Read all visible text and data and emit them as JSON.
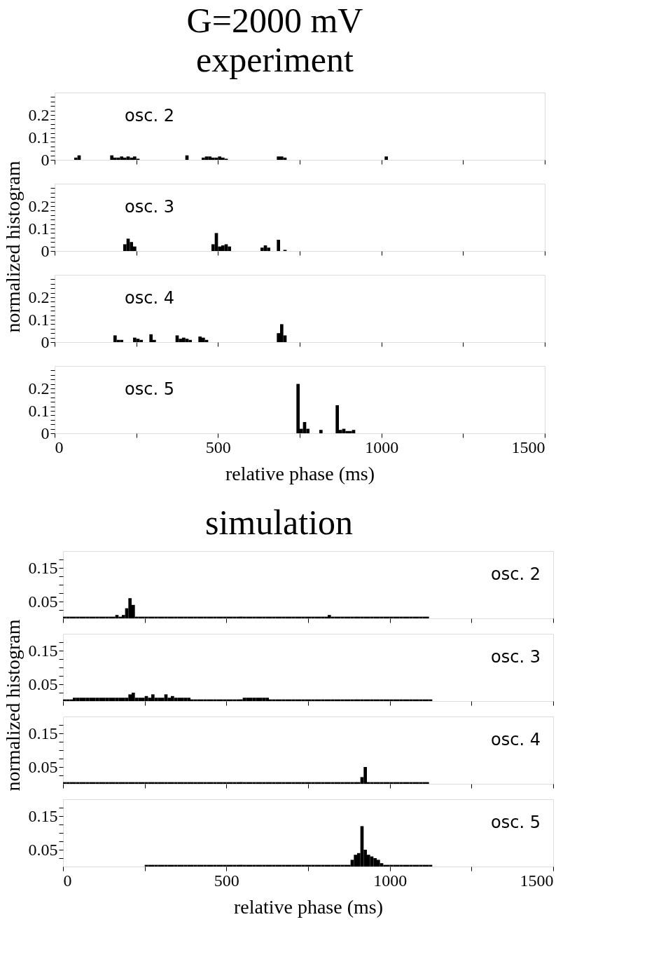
{
  "chart_data": [
    {
      "type": "histogram",
      "title": "G=2000 mV",
      "subtitle": "experiment",
      "ylabel": "normalized histogram",
      "annotations": [
        "osc. 2"
      ],
      "color": "#000000",
      "xlim": [
        0,
        1500
      ],
      "xticks": [
        0,
        {
          "value": 250,
          "label": null
        },
        500,
        {
          "value": 750,
          "label": null
        },
        1000,
        {
          "value": 1250,
          "label": null
        },
        1500
      ],
      "ylim": [
        0,
        0.3
      ],
      "yticks": [
        0,
        {
          "value": 0.02,
          "label": null
        },
        {
          "value": 0.04,
          "label": null
        },
        {
          "value": 0.06,
          "label": null
        },
        {
          "value": 0.08,
          "label": null
        },
        0.1,
        {
          "value": 0.12,
          "label": null
        },
        {
          "value": 0.14,
          "label": null
        },
        {
          "value": 0.16,
          "label": null
        },
        {
          "value": 0.18,
          "label": null
        },
        0.2,
        {
          "value": 0.22,
          "label": null
        },
        {
          "value": 0.24,
          "label": null
        },
        {
          "value": 0.26,
          "label": null
        },
        {
          "value": 0.28,
          "label": null
        }
      ],
      "tick_labels": "y",
      "bins": [
        0,
        10,
        20,
        30,
        40,
        50,
        60,
        70,
        80,
        90,
        100,
        110,
        120,
        130,
        140,
        150,
        160,
        170,
        180,
        190,
        200,
        210,
        220,
        230,
        240,
        250,
        260,
        270,
        280,
        290,
        300,
        310,
        320,
        330,
        340,
        350,
        360,
        370,
        380,
        390,
        400,
        410,
        420,
        430,
        440,
        450,
        460,
        470,
        480,
        490,
        500,
        510,
        520,
        530,
        540,
        550,
        560,
        570,
        580,
        590,
        600,
        610,
        620,
        630,
        640,
        650,
        660,
        670,
        680,
        690,
        700,
        710,
        720,
        730,
        740,
        750,
        760,
        770,
        780,
        790,
        800,
        810,
        820,
        830,
        840,
        850,
        860,
        870,
        880,
        890,
        900,
        910,
        920,
        930,
        940,
        950,
        960,
        970,
        980,
        990,
        1000,
        1010,
        1020,
        1030,
        1040,
        1050,
        1060,
        1070,
        1080,
        1090,
        1100,
        1110,
        1120,
        1130,
        1140,
        1150,
        1160,
        1170,
        1180,
        1190,
        1200
      ],
      "values": [
        0,
        0,
        0,
        0,
        0,
        0,
        0.01,
        0.02,
        0,
        0,
        0,
        0,
        0,
        0,
        0,
        0,
        0,
        0.02,
        0.01,
        0.01,
        0.015,
        0.01,
        0.015,
        0.01,
        0.015,
        0.005,
        0,
        0,
        0,
        0,
        0,
        0,
        0,
        0,
        0,
        0,
        0,
        0,
        0,
        0,
        0.02,
        0,
        0,
        0,
        0,
        0.01,
        0.015,
        0.015,
        0.01,
        0.01,
        0.015,
        0.01,
        0.005,
        0,
        0,
        0,
        0,
        0,
        0,
        0,
        0,
        0,
        0,
        0,
        0,
        0,
        0,
        0,
        0.015,
        0.015,
        0.01,
        0,
        0,
        0,
        0,
        0,
        0,
        0,
        0,
        0,
        0,
        0,
        0,
        0,
        0,
        0,
        0,
        0,
        0,
        0,
        0,
        0,
        0,
        0,
        0,
        0,
        0,
        0,
        0,
        0,
        0,
        0.015,
        0,
        0,
        0,
        0,
        0,
        0,
        0,
        0,
        0,
        0,
        0,
        0,
        0,
        0,
        0,
        0,
        0,
        0
      ]
    },
    {
      "type": "histogram",
      "annotations": [
        "osc. 3"
      ],
      "color": "#000000",
      "xlim": [
        0,
        1500
      ],
      "xticks": [
        0,
        {
          "value": 250,
          "label": null
        },
        500,
        {
          "value": 750,
          "label": null
        },
        1000,
        {
          "value": 1250,
          "label": null
        },
        1500
      ],
      "ylim": [
        0,
        0.3
      ],
      "yticks": [
        0,
        {
          "value": 0.02,
          "label": null
        },
        {
          "value": 0.04,
          "label": null
        },
        {
          "value": 0.06,
          "label": null
        },
        {
          "value": 0.08,
          "label": null
        },
        0.1,
        {
          "value": 0.12,
          "label": null
        },
        {
          "value": 0.14,
          "label": null
        },
        {
          "value": 0.16,
          "label": null
        },
        {
          "value": 0.18,
          "label": null
        },
        0.2,
        {
          "value": 0.22,
          "label": null
        },
        {
          "value": 0.24,
          "label": null
        },
        {
          "value": 0.26,
          "label": null
        },
        {
          "value": 0.28,
          "label": null
        }
      ],
      "tick_labels": "y",
      "bins": [
        0,
        10,
        20,
        30,
        40,
        50,
        60,
        70,
        80,
        90,
        100,
        110,
        120,
        130,
        140,
        150,
        160,
        170,
        180,
        190,
        200,
        210,
        220,
        230,
        240,
        250,
        260,
        270,
        280,
        290,
        300,
        310,
        320,
        330,
        340,
        350,
        360,
        370,
        380,
        390,
        400,
        410,
        420,
        430,
        440,
        450,
        460,
        470,
        480,
        490,
        500,
        510,
        520,
        530,
        540,
        550,
        560,
        570,
        580,
        590,
        600,
        610,
        620,
        630,
        640,
        650,
        660,
        670,
        680,
        690,
        700,
        710,
        720,
        730,
        740,
        750,
        760,
        770,
        780,
        790,
        800,
        810,
        820,
        830,
        840,
        850,
        860,
        870,
        880,
        890,
        900,
        910,
        920,
        930,
        940,
        950,
        960,
        970,
        980,
        990,
        1000,
        1010,
        1020,
        1030,
        1040,
        1050,
        1060,
        1070,
        1080,
        1090,
        1100,
        1110,
        1120,
        1130,
        1140,
        1150,
        1160,
        1170,
        1180,
        1190,
        1200
      ],
      "values": [
        0,
        0,
        0,
        0,
        0,
        0,
        0,
        0,
        0,
        0,
        0,
        0,
        0,
        0,
        0,
        0,
        0,
        0,
        0,
        0,
        0,
        0.03,
        0.055,
        0.04,
        0.02,
        0,
        0,
        0,
        0,
        0,
        0,
        0,
        0,
        0,
        0,
        0,
        0,
        0,
        0,
        0,
        0,
        0,
        0,
        0,
        0,
        0,
        0,
        0,
        0.03,
        0.08,
        0.02,
        0.025,
        0.03,
        0.02,
        0,
        0,
        0,
        0,
        0,
        0,
        0,
        0,
        0,
        0.015,
        0.025,
        0.015,
        0,
        0,
        0.05,
        0,
        0.005,
        0,
        0,
        0,
        0,
        0,
        0,
        0,
        0,
        0,
        0,
        0,
        0,
        0,
        0,
        0,
        0,
        0,
        0,
        0,
        0,
        0,
        0,
        0,
        0,
        0,
        0,
        0,
        0,
        0,
        0,
        0,
        0,
        0,
        0,
        0,
        0,
        0,
        0,
        0,
        0,
        0,
        0,
        0,
        0,
        0,
        0,
        0,
        0,
        0
      ]
    },
    {
      "type": "histogram",
      "annotations": [
        "osc. 4"
      ],
      "color": "#000000",
      "xlim": [
        0,
        1500
      ],
      "xticks": [
        0,
        {
          "value": 250,
          "label": null
        },
        500,
        {
          "value": 750,
          "label": null
        },
        1000,
        {
          "value": 1250,
          "label": null
        },
        1500
      ],
      "ylim": [
        0,
        0.3
      ],
      "yticks": [
        0,
        {
          "value": 0.02,
          "label": null
        },
        {
          "value": 0.04,
          "label": null
        },
        {
          "value": 0.06,
          "label": null
        },
        {
          "value": 0.08,
          "label": null
        },
        0.1,
        {
          "value": 0.12,
          "label": null
        },
        {
          "value": 0.14,
          "label": null
        },
        {
          "value": 0.16,
          "label": null
        },
        {
          "value": 0.18,
          "label": null
        },
        0.2,
        {
          "value": 0.22,
          "label": null
        },
        {
          "value": 0.24,
          "label": null
        },
        {
          "value": 0.26,
          "label": null
        },
        {
          "value": 0.28,
          "label": null
        }
      ],
      "tick_labels": "y",
      "bins": [
        0,
        10,
        20,
        30,
        40,
        50,
        60,
        70,
        80,
        90,
        100,
        110,
        120,
        130,
        140,
        150,
        160,
        170,
        180,
        190,
        200,
        210,
        220,
        230,
        240,
        250,
        260,
        270,
        280,
        290,
        300,
        310,
        320,
        330,
        340,
        350,
        360,
        370,
        380,
        390,
        400,
        410,
        420,
        430,
        440,
        450,
        460,
        470,
        480,
        490,
        500,
        510,
        520,
        530,
        540,
        550,
        560,
        570,
        580,
        590,
        600,
        610,
        620,
        630,
        640,
        650,
        660,
        670,
        680,
        690,
        700,
        710,
        720,
        730,
        740,
        750,
        760,
        770,
        780,
        790,
        800,
        810,
        820,
        830,
        840,
        850,
        860,
        870,
        880,
        890,
        900,
        910,
        920,
        930,
        940,
        950,
        960,
        970,
        980,
        990,
        1000,
        1010,
        1020,
        1030,
        1040,
        1050,
        1060,
        1070,
        1080,
        1090,
        1100,
        1110,
        1120,
        1130,
        1140,
        1150,
        1160,
        1170,
        1180,
        1190,
        1200
      ],
      "values": [
        0,
        0,
        0,
        0,
        0,
        0,
        0,
        0,
        0,
        0,
        0,
        0,
        0,
        0,
        0,
        0,
        0,
        0,
        0.03,
        0.01,
        0.01,
        0,
        0,
        0,
        0.02,
        0.015,
        0.01,
        0,
        0,
        0.035,
        0.01,
        0,
        0,
        0,
        0,
        0,
        0,
        0.03,
        0.015,
        0.02,
        0.015,
        0.01,
        0,
        0,
        0.025,
        0.02,
        0.01,
        0,
        0,
        0,
        0,
        0,
        0,
        0,
        0,
        0,
        0,
        0,
        0,
        0,
        0,
        0,
        0,
        0,
        0,
        0,
        0,
        0,
        0.04,
        0.08,
        0.03,
        0,
        0,
        0,
        0,
        0,
        0,
        0,
        0,
        0,
        0,
        0,
        0,
        0,
        0,
        0,
        0,
        0,
        0,
        0,
        0,
        0,
        0,
        0,
        0,
        0,
        0,
        0,
        0,
        0,
        0,
        0,
        0,
        0,
        0,
        0,
        0,
        0,
        0,
        0,
        0,
        0,
        0,
        0,
        0,
        0,
        0,
        0,
        0,
        0
      ]
    },
    {
      "type": "histogram",
      "xlabel": "relative phase (ms)",
      "annotations": [
        "osc. 5"
      ],
      "color": "#000000",
      "xlim": [
        0,
        1500
      ],
      "xticks": [
        0,
        {
          "value": 250,
          "label": null
        },
        500,
        {
          "value": 750,
          "label": null
        },
        1000,
        {
          "value": 1250,
          "label": null
        },
        1500
      ],
      "ylim": [
        0,
        0.3
      ],
      "yticks": [
        0,
        {
          "value": 0.02,
          "label": null
        },
        {
          "value": 0.04,
          "label": null
        },
        {
          "value": 0.06,
          "label": null
        },
        {
          "value": 0.08,
          "label": null
        },
        0.1,
        {
          "value": 0.12,
          "label": null
        },
        {
          "value": 0.14,
          "label": null
        },
        {
          "value": 0.16,
          "label": null
        },
        {
          "value": 0.18,
          "label": null
        },
        0.2,
        {
          "value": 0.22,
          "label": null
        },
        {
          "value": 0.24,
          "label": null
        },
        {
          "value": 0.26,
          "label": null
        },
        {
          "value": 0.28,
          "label": null
        }
      ],
      "bins": [
        0,
        10,
        20,
        30,
        40,
        50,
        60,
        70,
        80,
        90,
        100,
        110,
        120,
        130,
        140,
        150,
        160,
        170,
        180,
        190,
        200,
        210,
        220,
        230,
        240,
        250,
        260,
        270,
        280,
        290,
        300,
        310,
        320,
        330,
        340,
        350,
        360,
        370,
        380,
        390,
        400,
        410,
        420,
        430,
        440,
        450,
        460,
        470,
        480,
        490,
        500,
        510,
        520,
        530,
        540,
        550,
        560,
        570,
        580,
        590,
        600,
        610,
        620,
        630,
        640,
        650,
        660,
        670,
        680,
        690,
        700,
        710,
        720,
        730,
        740,
        750,
        760,
        770,
        780,
        790,
        800,
        810,
        820,
        830,
        840,
        850,
        860,
        870,
        880,
        890,
        900,
        910,
        920,
        930,
        940,
        950,
        960,
        970,
        980,
        990,
        1000,
        1010,
        1020,
        1030,
        1040,
        1050,
        1060,
        1070,
        1080,
        1090,
        1100,
        1110,
        1120,
        1130,
        1140,
        1150,
        1160,
        1170,
        1180,
        1190,
        1200
      ],
      "values": [
        0,
        0,
        0,
        0,
        0,
        0,
        0,
        0,
        0,
        0,
        0,
        0,
        0,
        0,
        0,
        0,
        0,
        0,
        0,
        0,
        0,
        0,
        0,
        0,
        0,
        0,
        0,
        0,
        0,
        0,
        0,
        0,
        0,
        0,
        0,
        0,
        0,
        0,
        0,
        0,
        0,
        0,
        0,
        0,
        0,
        0,
        0,
        0,
        0,
        0,
        0,
        0,
        0,
        0,
        0,
        0,
        0,
        0,
        0,
        0,
        0,
        0,
        0,
        0,
        0,
        0,
        0,
        0,
        0,
        0,
        0,
        0,
        0,
        0,
        0.22,
        0.02,
        0.05,
        0.02,
        0,
        0,
        0,
        0.015,
        0,
        0,
        0,
        0,
        0.125,
        0.015,
        0.02,
        0.01,
        0.01,
        0.015,
        0,
        0,
        0,
        0,
        0,
        0,
        0,
        0,
        0,
        0,
        0,
        0,
        0,
        0,
        0,
        0,
        0,
        0,
        0,
        0,
        0,
        0,
        0,
        0,
        0,
        0,
        0,
        0
      ]
    },
    {
      "type": "histogram",
      "title": "simulation",
      "ylabel": "normalized histogram",
      "annotations": [
        "osc. 2"
      ],
      "color": "#000000",
      "xlim": [
        0,
        1500
      ],
      "xticks": [
        0,
        {
          "value": 250,
          "label": null
        },
        500,
        {
          "value": 750,
          "label": null
        },
        1000,
        {
          "value": 1250,
          "label": null
        },
        1500
      ],
      "ylim": [
        0,
        0.2
      ],
      "yticks": [
        {
          "value": 0.025,
          "label": null
        },
        0.05,
        {
          "value": 0.075,
          "label": null
        },
        {
          "value": 0.1,
          "label": null
        },
        {
          "value": 0.125,
          "label": null
        },
        0.15,
        {
          "value": 0.175,
          "label": null
        }
      ],
      "tick_labels": "y",
      "bins": [
        0,
        10,
        20,
        30,
        40,
        50,
        60,
        70,
        80,
        90,
        100,
        110,
        120,
        130,
        140,
        150,
        160,
        170,
        180,
        190,
        200,
        210,
        220,
        230,
        240,
        250,
        260,
        270,
        280,
        290,
        300,
        310,
        320,
        330,
        340,
        350,
        360,
        370,
        380,
        390,
        400,
        410,
        420,
        430,
        440,
        450,
        460,
        470,
        480,
        490,
        500,
        510,
        520,
        530,
        540,
        550,
        560,
        570,
        580,
        590,
        600,
        610,
        620,
        630,
        640,
        650,
        660,
        670,
        680,
        690,
        700,
        710,
        720,
        730,
        740,
        750,
        760,
        770,
        780,
        790,
        800,
        810,
        820,
        830,
        840,
        850,
        860,
        870,
        880,
        890,
        900,
        910,
        920,
        930,
        940,
        950,
        960,
        970,
        980,
        990,
        1000,
        1010,
        1020,
        1030,
        1040,
        1050,
        1060,
        1070,
        1080,
        1090,
        1100,
        1110,
        1120,
        1130,
        1140,
        1150,
        1160,
        1170,
        1180,
        1190,
        1200
      ],
      "values": [
        0.005,
        0.005,
        0.005,
        0.005,
        0.005,
        0.005,
        0.005,
        0.005,
        0.005,
        0.005,
        0.005,
        0.005,
        0.005,
        0.005,
        0.005,
        0.005,
        0.01,
        0.005,
        0.01,
        0.03,
        0.06,
        0.04,
        0.005,
        0.005,
        0.005,
        0.005,
        0.005,
        0.005,
        0.005,
        0.005,
        0.005,
        0.005,
        0.005,
        0.005,
        0.005,
        0.005,
        0.005,
        0.005,
        0.005,
        0.005,
        0.005,
        0.005,
        0.005,
        0.005,
        0.005,
        0.005,
        0.005,
        0.005,
        0.005,
        0.005,
        0.005,
        0.005,
        0.005,
        0.005,
        0.005,
        0.005,
        0.005,
        0.005,
        0.005,
        0.005,
        0.005,
        0.005,
        0.005,
        0.005,
        0.005,
        0.005,
        0.005,
        0.005,
        0.005,
        0.005,
        0.005,
        0.005,
        0.005,
        0.005,
        0.005,
        0.005,
        0.005,
        0.005,
        0.005,
        0.005,
        0.005,
        0.01,
        0.005,
        0.005,
        0.005,
        0.005,
        0.005,
        0.005,
        0.005,
        0.005,
        0.005,
        0.005,
        0.005,
        0.005,
        0.005,
        0.005,
        0.005,
        0.005,
        0.005,
        0.005,
        0.005,
        0.005,
        0.005,
        0.005,
        0.005,
        0.005,
        0.005,
        0.005,
        0.005,
        0.005,
        0.005,
        0.005,
        0,
        0,
        0,
        0,
        0,
        0,
        0,
        0
      ]
    },
    {
      "type": "histogram",
      "annotations": [
        "osc. 3"
      ],
      "color": "#000000",
      "xlim": [
        0,
        1500
      ],
      "xticks": [
        0,
        {
          "value": 250,
          "label": null
        },
        500,
        {
          "value": 750,
          "label": null
        },
        1000,
        {
          "value": 1250,
          "label": null
        },
        1500
      ],
      "ylim": [
        0,
        0.2
      ],
      "yticks": [
        {
          "value": 0.025,
          "label": null
        },
        0.05,
        {
          "value": 0.075,
          "label": null
        },
        {
          "value": 0.1,
          "label": null
        },
        {
          "value": 0.125,
          "label": null
        },
        0.15,
        {
          "value": 0.175,
          "label": null
        }
      ],
      "tick_labels": "y",
      "bins": [
        0,
        10,
        20,
        30,
        40,
        50,
        60,
        70,
        80,
        90,
        100,
        110,
        120,
        130,
        140,
        150,
        160,
        170,
        180,
        190,
        200,
        210,
        220,
        230,
        240,
        250,
        260,
        270,
        280,
        290,
        300,
        310,
        320,
        330,
        340,
        350,
        360,
        370,
        380,
        390,
        400,
        410,
        420,
        430,
        440,
        450,
        460,
        470,
        480,
        490,
        500,
        510,
        520,
        530,
        540,
        550,
        560,
        570,
        580,
        590,
        600,
        610,
        620,
        630,
        640,
        650,
        660,
        670,
        680,
        690,
        700,
        710,
        720,
        730,
        740,
        750,
        760,
        770,
        780,
        790,
        800,
        810,
        820,
        830,
        840,
        850,
        860,
        870,
        880,
        890,
        900,
        910,
        920,
        930,
        940,
        950,
        960,
        970,
        980,
        990,
        1000,
        1010,
        1020,
        1030,
        1040,
        1050,
        1060,
        1070,
        1080,
        1090,
        1100,
        1110,
        1120,
        1130,
        1140,
        1150,
        1160,
        1170,
        1180,
        1190,
        1200
      ],
      "values": [
        0.005,
        0.005,
        0.005,
        0.01,
        0.01,
        0.01,
        0.01,
        0.01,
        0.01,
        0.01,
        0.01,
        0.01,
        0.01,
        0.01,
        0.01,
        0.01,
        0.01,
        0.01,
        0.01,
        0.01,
        0.02,
        0.025,
        0.01,
        0.01,
        0.01,
        0.015,
        0.01,
        0.02,
        0.01,
        0.01,
        0.01,
        0.02,
        0.01,
        0.015,
        0.01,
        0.01,
        0.01,
        0.01,
        0.01,
        0.005,
        0.005,
        0.005,
        0.005,
        0.005,
        0.005,
        0.005,
        0.005,
        0.005,
        0.005,
        0.005,
        0.005,
        0.005,
        0.005,
        0.005,
        0.005,
        0.01,
        0.01,
        0.01,
        0.01,
        0.01,
        0.01,
        0.01,
        0.01,
        0.005,
        0.005,
        0.005,
        0.005,
        0.005,
        0.005,
        0.005,
        0.005,
        0.005,
        0.005,
        0.005,
        0.005,
        0.005,
        0.005,
        0.005,
        0.005,
        0.005,
        0.005,
        0.005,
        0.005,
        0.005,
        0.005,
        0.005,
        0.005,
        0.005,
        0.005,
        0.005,
        0.005,
        0.005,
        0.005,
        0.005,
        0.005,
        0.005,
        0.005,
        0.005,
        0.005,
        0.005,
        0.005,
        0.005,
        0.005,
        0.005,
        0.005,
        0.005,
        0.005,
        0.005,
        0.005,
        0.005,
        0.005,
        0.005,
        0.005,
        0,
        0,
        0,
        0,
        0,
        0,
        0
      ]
    },
    {
      "type": "histogram",
      "annotations": [
        "osc. 4"
      ],
      "color": "#000000",
      "xlim": [
        0,
        1500
      ],
      "xticks": [
        0,
        {
          "value": 250,
          "label": null
        },
        500,
        {
          "value": 750,
          "label": null
        },
        1000,
        {
          "value": 1250,
          "label": null
        },
        1500
      ],
      "ylim": [
        0,
        0.2
      ],
      "yticks": [
        {
          "value": 0.025,
          "label": null
        },
        0.05,
        {
          "value": 0.075,
          "label": null
        },
        {
          "value": 0.1,
          "label": null
        },
        {
          "value": 0.125,
          "label": null
        },
        0.15,
        {
          "value": 0.175,
          "label": null
        }
      ],
      "tick_labels": "y",
      "bins": [
        0,
        10,
        20,
        30,
        40,
        50,
        60,
        70,
        80,
        90,
        100,
        110,
        120,
        130,
        140,
        150,
        160,
        170,
        180,
        190,
        200,
        210,
        220,
        230,
        240,
        250,
        260,
        270,
        280,
        290,
        300,
        310,
        320,
        330,
        340,
        350,
        360,
        370,
        380,
        390,
        400,
        410,
        420,
        430,
        440,
        450,
        460,
        470,
        480,
        490,
        500,
        510,
        520,
        530,
        540,
        550,
        560,
        570,
        580,
        590,
        600,
        610,
        620,
        630,
        640,
        650,
        660,
        670,
        680,
        690,
        700,
        710,
        720,
        730,
        740,
        750,
        760,
        770,
        780,
        790,
        800,
        810,
        820,
        830,
        840,
        850,
        860,
        870,
        880,
        890,
        900,
        910,
        920,
        930,
        940,
        950,
        960,
        970,
        980,
        990,
        1000,
        1010,
        1020,
        1030,
        1040,
        1050,
        1060,
        1070,
        1080,
        1090,
        1100,
        1110,
        1120,
        1130,
        1140,
        1150,
        1160,
        1170,
        1180,
        1190,
        1200
      ],
      "values": [
        0.005,
        0.005,
        0.005,
        0.005,
        0.005,
        0.005,
        0.005,
        0.005,
        0.005,
        0.005,
        0.005,
        0.005,
        0.005,
        0.005,
        0.005,
        0.005,
        0.005,
        0.005,
        0.005,
        0.005,
        0.005,
        0.005,
        0.005,
        0.005,
        0.005,
        0.005,
        0.005,
        0.005,
        0.005,
        0.005,
        0.005,
        0.005,
        0.005,
        0.005,
        0.005,
        0.005,
        0.005,
        0.005,
        0.005,
        0.005,
        0.005,
        0.005,
        0.005,
        0.005,
        0.005,
        0.005,
        0.005,
        0.005,
        0.005,
        0.005,
        0.005,
        0.005,
        0.005,
        0.005,
        0.005,
        0.005,
        0.005,
        0.005,
        0.005,
        0.005,
        0.005,
        0.005,
        0.005,
        0.005,
        0.005,
        0.005,
        0.005,
        0.005,
        0.005,
        0.005,
        0.005,
        0.005,
        0.005,
        0.005,
        0.005,
        0.005,
        0.005,
        0.005,
        0.005,
        0.005,
        0.005,
        0.005,
        0.005,
        0.005,
        0.005,
        0.005,
        0.005,
        0.005,
        0.005,
        0.005,
        0.005,
        0.02,
        0.05,
        0.005,
        0.005,
        0.005,
        0.005,
        0.005,
        0.005,
        0.005,
        0.005,
        0.005,
        0.005,
        0.005,
        0.005,
        0.005,
        0.005,
        0.005,
        0.005,
        0.005,
        0.005,
        0.005,
        0,
        0,
        0,
        0,
        0,
        0,
        0,
        0
      ]
    },
    {
      "type": "histogram",
      "xlabel": "relative phase (ms)",
      "annotations": [
        "osc. 5"
      ],
      "color": "#000000",
      "xlim": [
        0,
        1500
      ],
      "xticks": [
        0,
        {
          "value": 250,
          "label": null
        },
        500,
        {
          "value": 750,
          "label": null
        },
        1000,
        {
          "value": 1250,
          "label": null
        },
        1500
      ],
      "ylim": [
        0,
        0.2
      ],
      "yticks": [
        {
          "value": 0.025,
          "label": null
        },
        0.05,
        {
          "value": 0.075,
          "label": null
        },
        {
          "value": 0.1,
          "label": null
        },
        {
          "value": 0.125,
          "label": null
        },
        0.15,
        {
          "value": 0.175,
          "label": null
        }
      ],
      "bins": [
        0,
        10,
        20,
        30,
        40,
        50,
        60,
        70,
        80,
        90,
        100,
        110,
        120,
        130,
        140,
        150,
        160,
        170,
        180,
        190,
        200,
        210,
        220,
        230,
        240,
        250,
        260,
        270,
        280,
        290,
        300,
        310,
        320,
        330,
        340,
        350,
        360,
        370,
        380,
        390,
        400,
        410,
        420,
        430,
        440,
        450,
        460,
        470,
        480,
        490,
        500,
        510,
        520,
        530,
        540,
        550,
        560,
        570,
        580,
        590,
        600,
        610,
        620,
        630,
        640,
        650,
        660,
        670,
        680,
        690,
        700,
        710,
        720,
        730,
        740,
        750,
        760,
        770,
        780,
        790,
        800,
        810,
        820,
        830,
        840,
        850,
        860,
        870,
        880,
        890,
        900,
        910,
        920,
        930,
        940,
        950,
        960,
        970,
        980,
        990,
        1000,
        1010,
        1020,
        1030,
        1040,
        1050,
        1060,
        1070,
        1080,
        1090,
        1100,
        1110,
        1120,
        1130,
        1140,
        1150,
        1160,
        1170,
        1180,
        1190,
        1200
      ],
      "values": [
        0,
        0,
        0,
        0,
        0,
        0,
        0,
        0,
        0,
        0,
        0,
        0,
        0,
        0,
        0,
        0,
        0,
        0,
        0,
        0,
        0,
        0,
        0,
        0,
        0,
        0.005,
        0.005,
        0.005,
        0.005,
        0.005,
        0.005,
        0.005,
        0.005,
        0.005,
        0.005,
        0.005,
        0.005,
        0.005,
        0.005,
        0.005,
        0.005,
        0.005,
        0.005,
        0.005,
        0.005,
        0.005,
        0.005,
        0.005,
        0.005,
        0.005,
        0.005,
        0.005,
        0.005,
        0.005,
        0.005,
        0.005,
        0.005,
        0.005,
        0.005,
        0.005,
        0.005,
        0.005,
        0.005,
        0.005,
        0.005,
        0.005,
        0.005,
        0.005,
        0.005,
        0.005,
        0.005,
        0.005,
        0.005,
        0.005,
        0.005,
        0.005,
        0.005,
        0.005,
        0.005,
        0.005,
        0.005,
        0.005,
        0.005,
        0.005,
        0.005,
        0.005,
        0.005,
        0.005,
        0.02,
        0.035,
        0.04,
        0.12,
        0.05,
        0.035,
        0.03,
        0.025,
        0.02,
        0.01,
        0.005,
        0.005,
        0.005,
        0.005,
        0.005,
        0.005,
        0.005,
        0.005,
        0.005,
        0.005,
        0.005,
        0.005,
        0.005,
        0.005,
        0.005,
        0,
        0,
        0,
        0,
        0,
        0,
        0
      ]
    }
  ]
}
